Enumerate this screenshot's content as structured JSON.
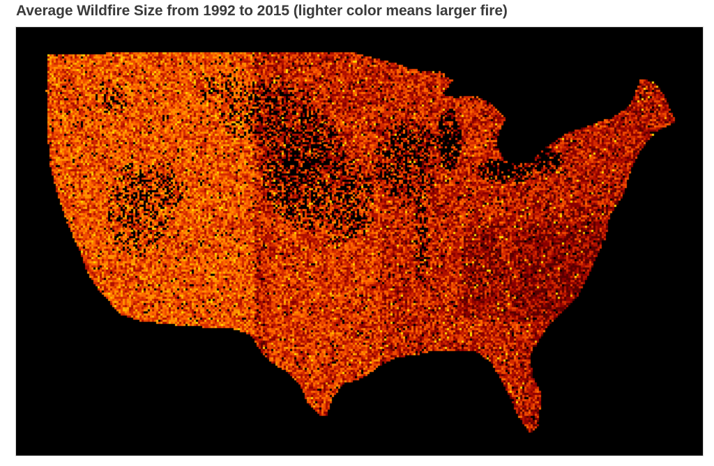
{
  "title": "Average Wildfire Size from 1992 to 2015 (lighter color means larger fire)",
  "map": {
    "background_color": "#000000",
    "frame_border_color": "#d4d4d4",
    "color_scale": [
      "#5a0000",
      "#8b0000",
      "#b01000",
      "#d42a00",
      "#ee4a00",
      "#ff6a00",
      "#ff9000",
      "#ffb400",
      "#ffd800"
    ],
    "color_meaning": "lighter color means larger fire"
  }
}
